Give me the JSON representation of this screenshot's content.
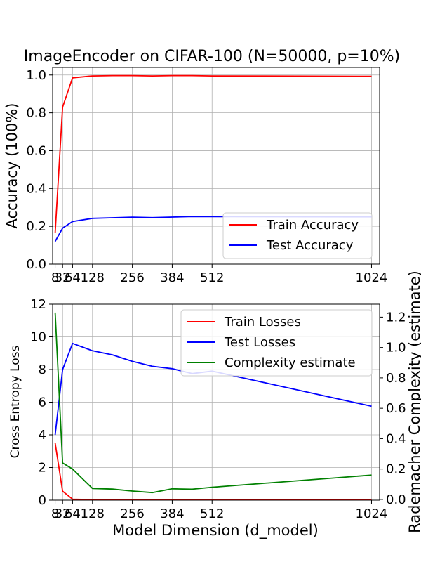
{
  "chart_data": [
    {
      "type": "line",
      "title": "ImageEncoder on CIFAR-100 (N=50000, p=10%)",
      "xlabel": "",
      "ylabel": "Accuracy (100%)",
      "xlim": [
        0,
        1050
      ],
      "ylim": [
        0,
        1.04
      ],
      "xticks": [
        8,
        32,
        64,
        128,
        256,
        384,
        512,
        1024
      ],
      "xtick_labels": [
        "8",
        "32",
        "64",
        "128",
        "256",
        "384",
        "512",
        "1024"
      ],
      "yticks": [
        0.0,
        0.2,
        0.4,
        0.6,
        0.8,
        1.0
      ],
      "ytick_labels": [
        "0.0",
        "0.2",
        "0.4",
        "0.6",
        "0.8",
        "1.0"
      ],
      "grid": true,
      "legend": "bottom-right",
      "series": [
        {
          "name": "Train Accuracy",
          "color": "#ff0000",
          "x": [
            8,
            32,
            64,
            128,
            192,
            256,
            320,
            384,
            448,
            512,
            1024
          ],
          "y": [
            0.165,
            0.83,
            0.985,
            0.995,
            0.997,
            0.997,
            0.995,
            0.997,
            0.997,
            0.995,
            0.993
          ]
        },
        {
          "name": "Test Accuracy",
          "color": "#0000ff",
          "x": [
            8,
            32,
            64,
            128,
            192,
            256,
            320,
            384,
            448,
            512,
            1024
          ],
          "y": [
            0.12,
            0.19,
            0.225,
            0.242,
            0.245,
            0.248,
            0.246,
            0.249,
            0.252,
            0.251,
            0.25
          ]
        }
      ]
    },
    {
      "type": "line",
      "title": "",
      "xlabel": "Model Dimension (d_model)",
      "ylabel": "Cross Entropy Loss",
      "y2label": "Rademacher Complexity (estimate)",
      "xlim": [
        0,
        1050
      ],
      "ylim": [
        0,
        12
      ],
      "y2lim": [
        -0.005,
        1.285
      ],
      "xticks": [
        8,
        32,
        64,
        128,
        256,
        384,
        512,
        1024
      ],
      "xtick_labels": [
        "8",
        "32",
        "64",
        "128",
        "256",
        "384",
        "512",
        "1024"
      ],
      "yticks": [
        0,
        2,
        4,
        6,
        8,
        10,
        12
      ],
      "ytick_labels": [
        "0",
        "2",
        "4",
        "6",
        "8",
        "10",
        "12"
      ],
      "y2ticks": [
        0.0,
        0.2,
        0.4,
        0.6,
        0.8,
        1.0,
        1.2
      ],
      "y2tick_labels": [
        "0.0",
        "0.2",
        "0.4",
        "0.6",
        "0.8",
        "1.0",
        "1.2"
      ],
      "grid": true,
      "legend": "top-right",
      "series": [
        {
          "name": "Train Losses",
          "color": "#ff0000",
          "axis": "left",
          "x": [
            8,
            32,
            64,
            128,
            192,
            256,
            320,
            384,
            448,
            512,
            1024
          ],
          "y": [
            3.5,
            0.55,
            0.06,
            0.03,
            0.02,
            0.02,
            0.02,
            0.02,
            0.02,
            0.02,
            0.02
          ]
        },
        {
          "name": "Test Losses",
          "color": "#0000ff",
          "axis": "left",
          "x": [
            8,
            32,
            64,
            128,
            192,
            256,
            320,
            384,
            448,
            512,
            1024
          ],
          "y": [
            4.0,
            8.0,
            9.6,
            9.15,
            8.9,
            8.5,
            8.2,
            8.05,
            7.75,
            7.9,
            5.75
          ]
        },
        {
          "name": "Complexity estimate",
          "color": "#008000",
          "axis": "right",
          "x": [
            8,
            32,
            64,
            128,
            192,
            256,
            320,
            384,
            448,
            512,
            1024
          ],
          "y": [
            1.23,
            0.24,
            0.2,
            0.072,
            0.068,
            0.055,
            0.045,
            0.07,
            0.067,
            0.08,
            0.16
          ]
        }
      ]
    }
  ]
}
